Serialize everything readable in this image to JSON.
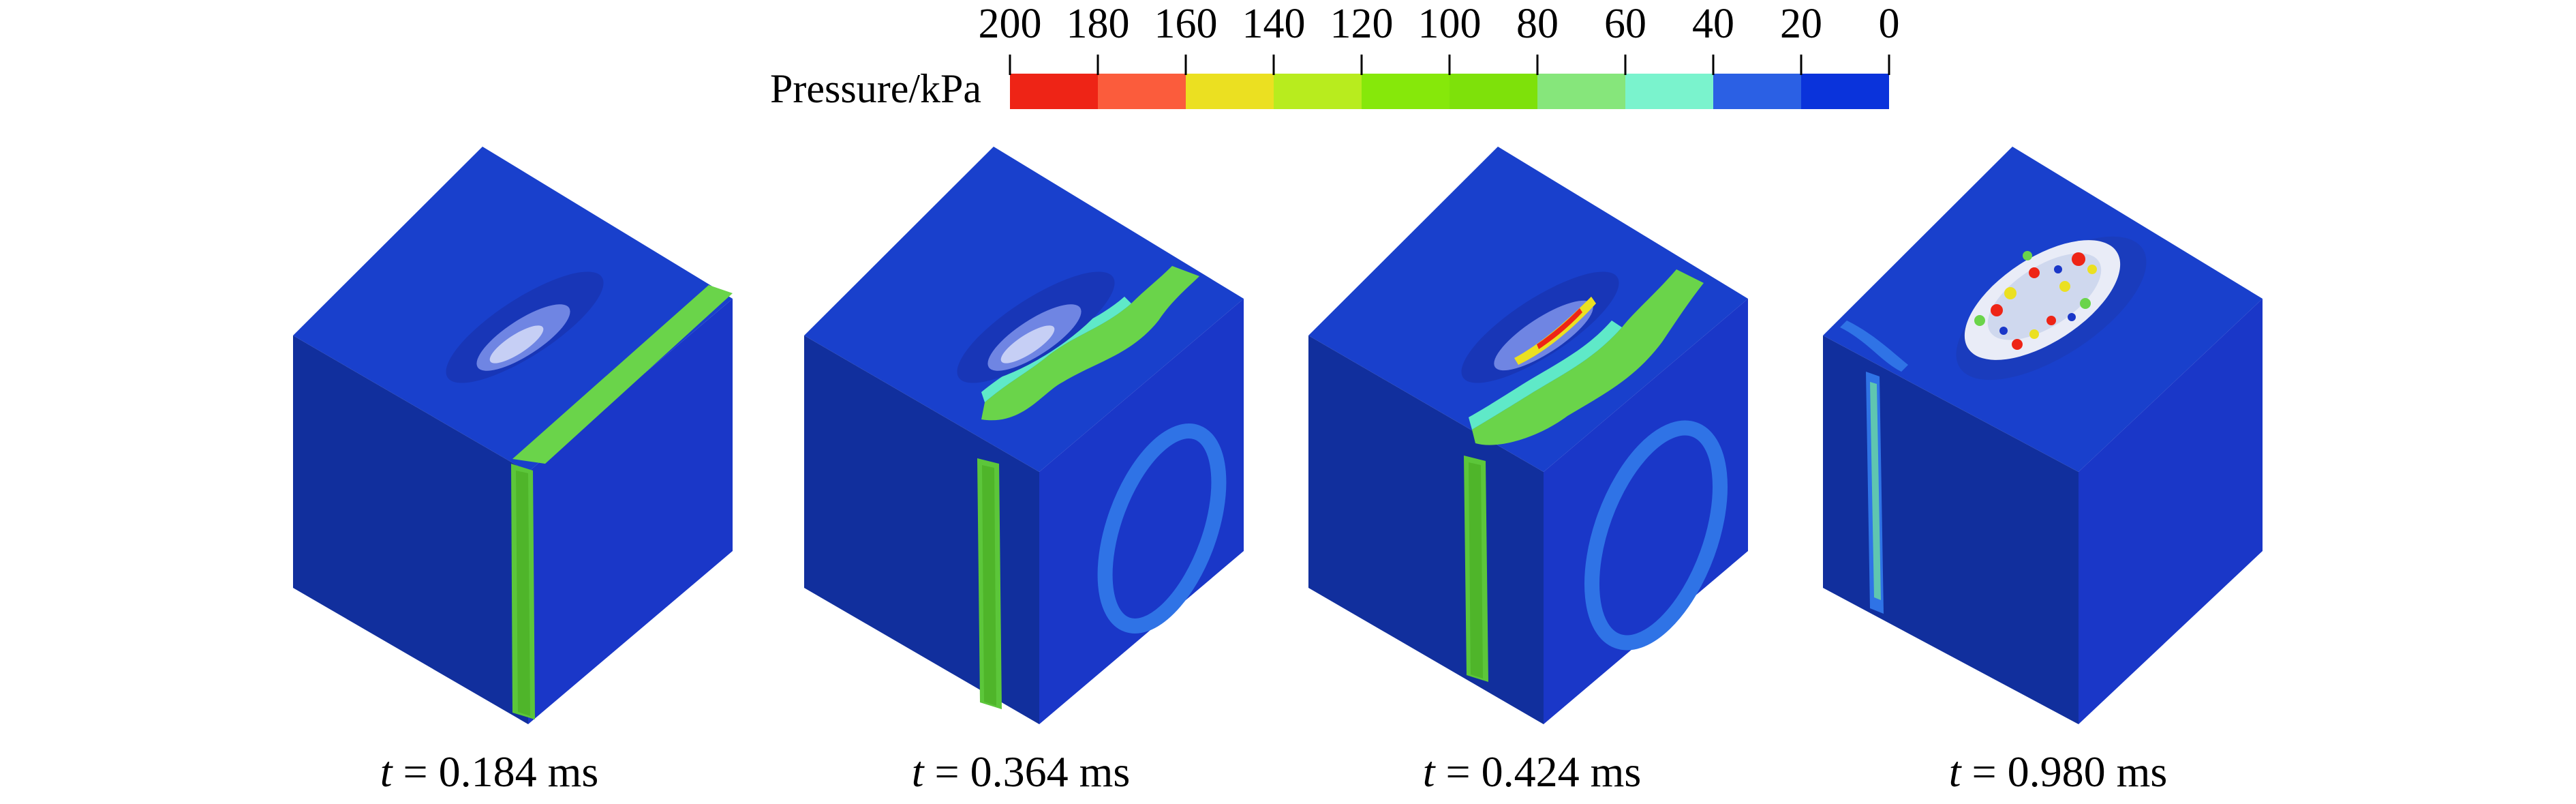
{
  "colorbar": {
    "title": "Pressure/kPa",
    "ticks": [
      "200",
      "180",
      "160",
      "140",
      "120",
      "100",
      "80",
      "60",
      "40",
      "20",
      "0"
    ],
    "colors": [
      "#ee2416",
      "#fb5c3c",
      "#ebe021",
      "#b8ec1e",
      "#86e80a",
      "#7ee10a",
      "#86e67b",
      "#7af3cd",
      "#2b60e4",
      "#0a33db"
    ]
  },
  "colors": {
    "top_face": "#1940cc",
    "left_face": "#112f9d",
    "right_face": "#1a37c8",
    "green_band": "#6ad44a",
    "green_band_dark": "#4fb52a",
    "cyan": "#5fe9c8",
    "light_blue": "#2f73e6",
    "red": "#ee2416",
    "yellow": "#ebe021"
  },
  "panels": [
    {
      "var": "t",
      "equals": "=",
      "value": "0.184",
      "unit": "ms"
    },
    {
      "var": "t",
      "equals": "=",
      "value": "0.364",
      "unit": "ms"
    },
    {
      "var": "t",
      "equals": "=",
      "value": "0.424",
      "unit": "ms"
    },
    {
      "var": "t",
      "equals": "=",
      "value": "0.980",
      "unit": "ms"
    }
  ]
}
